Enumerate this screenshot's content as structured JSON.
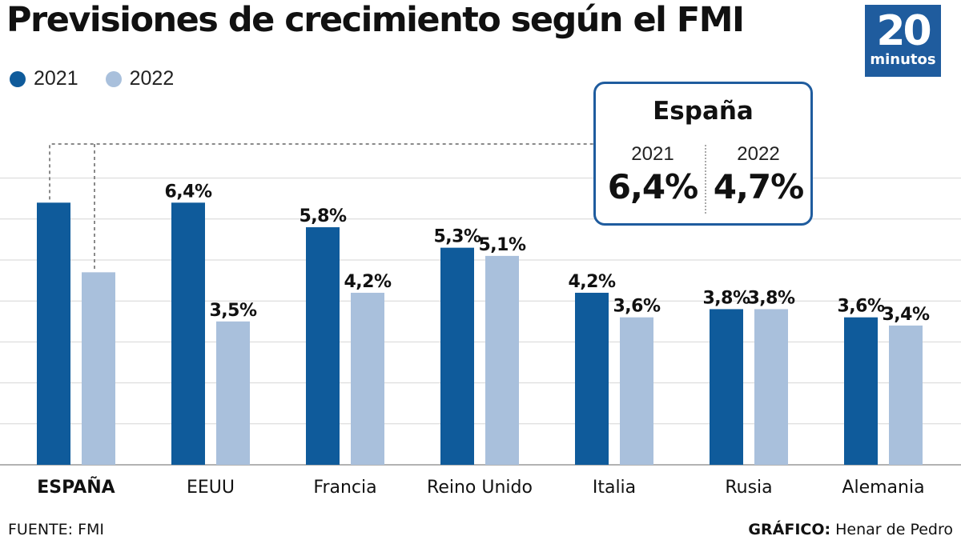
{
  "header": {
    "title": "Previsiones de crecimiento según el FMI",
    "logo_number": "20",
    "logo_word": "minutos"
  },
  "legend": [
    {
      "label": "2021",
      "color": "#0f5b9b"
    },
    {
      "label": "2022",
      "color": "#a9c0dc"
    }
  ],
  "callout": {
    "title": "España",
    "col1_year": "2021",
    "col1_value": "6,4%",
    "col2_year": "2022",
    "col2_value": "4,7%"
  },
  "chart_data": {
    "type": "bar",
    "categories": [
      "ESPAÑA",
      "EEUU",
      "Francia",
      "Reino Unido",
      "Italia",
      "Rusia",
      "Alemania"
    ],
    "series": [
      {
        "name": "2021",
        "color": "#0f5b9b",
        "values": [
          6.4,
          6.4,
          5.8,
          5.3,
          4.2,
          3.8,
          3.6
        ],
        "labels": [
          "",
          "6,4%",
          "5,8%",
          "5,3%",
          "4,2%",
          "3,8%",
          "3,6%"
        ]
      },
      {
        "name": "2022",
        "color": "#a9c0dc",
        "values": [
          4.7,
          3.5,
          4.2,
          5.1,
          3.6,
          3.8,
          3.4
        ],
        "labels": [
          "",
          "3,5%",
          "4,2%",
          "5,1%",
          "3,6%",
          "3,8%",
          "3,4%"
        ]
      }
    ],
    "highlight_category": "ESPAÑA",
    "ylim": [
      0,
      7
    ],
    "gridlines": [
      1,
      2,
      3,
      4,
      5,
      6,
      7
    ],
    "grid": true
  },
  "footer": {
    "source": "FUENTE: FMI",
    "credit_label": "GRÁFICO:",
    "credit_name": " Henar de Pedro"
  }
}
